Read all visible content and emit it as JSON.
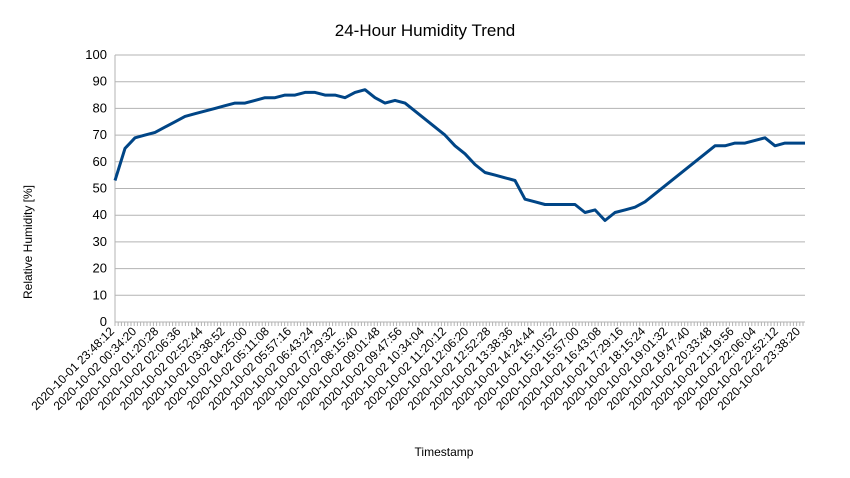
{
  "chart_data": {
    "type": "line",
    "title": "24-Hour Humidity Trend",
    "xlabel": "Timestamp",
    "ylabel": "Relative Humidity [%]",
    "ylim": [
      0,
      100
    ],
    "yticks": [
      0,
      10,
      20,
      30,
      40,
      50,
      60,
      70,
      80,
      90,
      100
    ],
    "grid": true,
    "legend": "none",
    "line_color": "#004586",
    "xticks": [
      "2020-10-01 23:48:12",
      "2020-10-02 00:34:20",
      "2020-10-02 01:20:28",
      "2020-10-02 02:06:36",
      "2020-10-02 02:52:44",
      "2020-10-02 03:38:52",
      "2020-10-02 04:25:00",
      "2020-10-02 05:11:08",
      "2020-10-02 05:57:16",
      "2020-10-02 06:43:24",
      "2020-10-02 07:29:32",
      "2020-10-02 08:15:40",
      "2020-10-02 09:01:48",
      "2020-10-02 09:47:56",
      "2020-10-02 10:34:04",
      "2020-10-02 11:20:12",
      "2020-10-02 12:06:20",
      "2020-10-02 12:52:28",
      "2020-10-02 13:38:36",
      "2020-10-02 14:24:44",
      "2020-10-02 15:10:52",
      "2020-10-02 15:57:00",
      "2020-10-02 16:43:08",
      "2020-10-02 17:29:16",
      "2020-10-02 18:15:24",
      "2020-10-02 19:01:32",
      "2020-10-02 19:47:40",
      "2020-10-02 20:33:48",
      "2020-10-02 21:19:56",
      "2020-10-02 22:06:04",
      "2020-10-02 22:52:12",
      "2020-10-02 23:38:20"
    ],
    "series": [
      {
        "values": [
          53,
          65,
          69,
          70,
          71,
          73,
          75,
          77,
          78,
          79,
          80,
          81,
          82,
          82,
          83,
          84,
          84,
          85,
          85,
          86,
          86,
          85,
          85,
          84,
          86,
          87,
          84,
          82,
          83,
          82,
          79,
          76,
          73,
          70,
          66,
          63,
          59,
          56,
          55,
          54,
          53,
          46,
          45,
          44,
          44,
          44,
          44,
          41,
          42,
          38,
          41,
          42,
          43,
          45,
          48,
          51,
          54,
          57,
          60,
          63,
          66,
          66,
          67,
          67,
          68,
          69,
          66,
          67,
          67,
          67
        ]
      }
    ]
  }
}
